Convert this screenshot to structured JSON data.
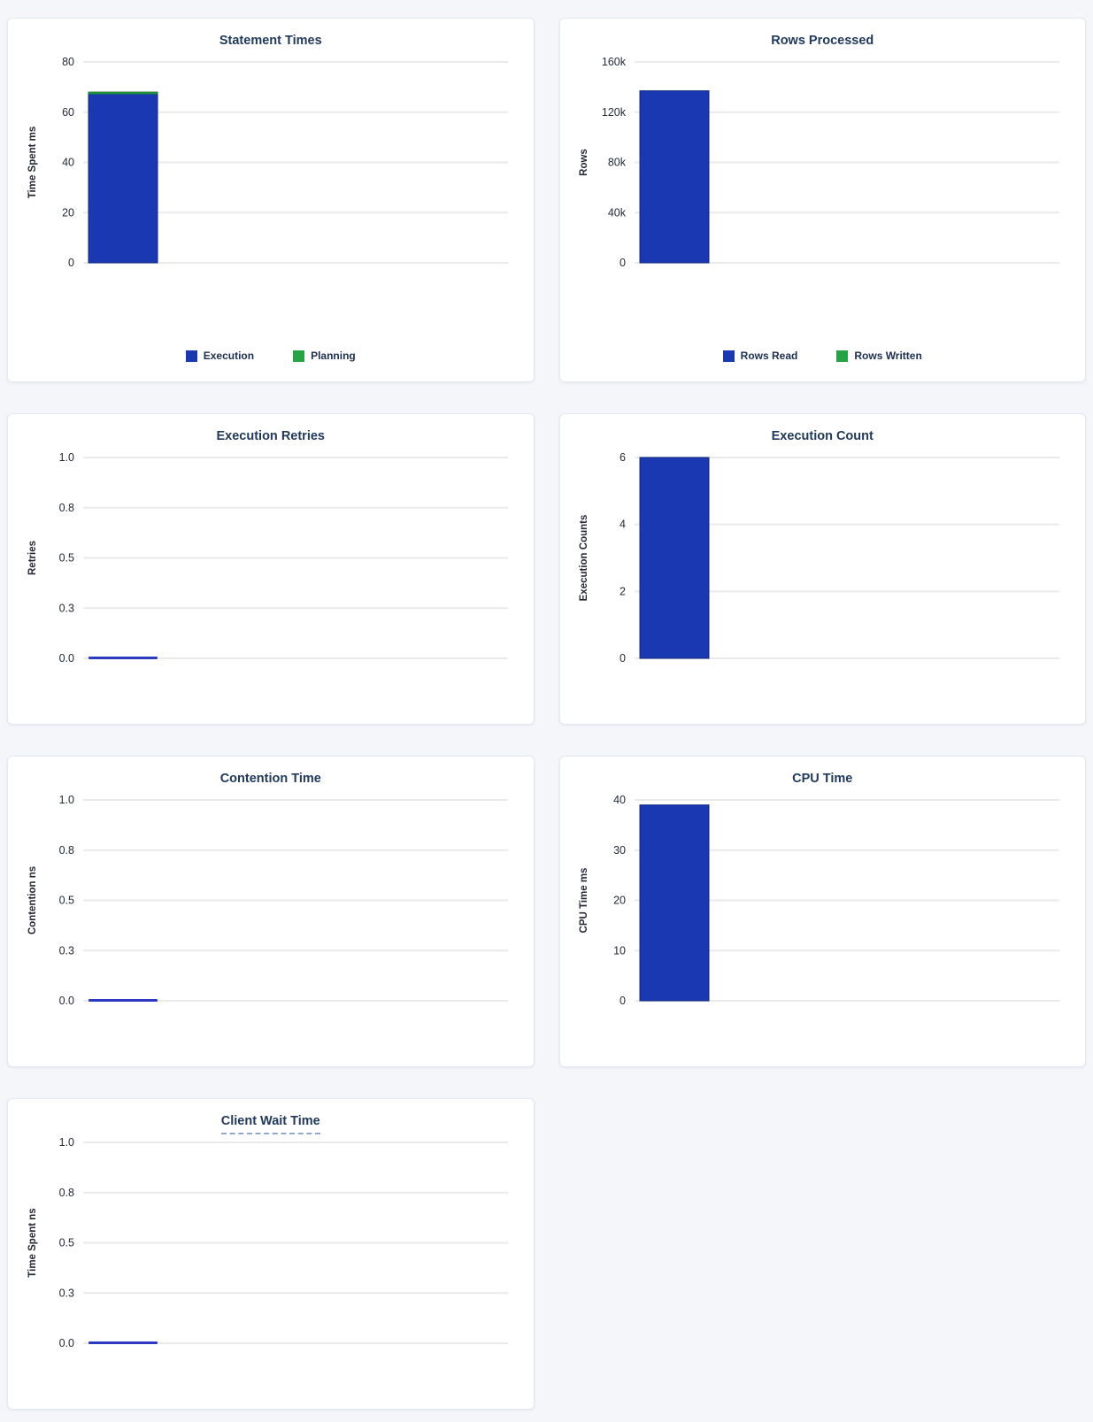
{
  "colors": {
    "blue": "#1a38b2",
    "blue_stroke": "#12297f",
    "green": "#26a344",
    "green_stroke": "#1b7c33",
    "zero_line": "#2a3bc0",
    "page_bg": "#f4f6fa",
    "card_bg": "#ffffff",
    "card_border": "#e3e9f0",
    "title_text": "#20395c",
    "axis_text": "#232b36",
    "gridline": "#e8eaec"
  },
  "chart_data": [
    {
      "id": "statement-times",
      "type": "bar",
      "title": "Statement Times",
      "ylabel": "Time Spent ms",
      "ytick_labels": [
        "80",
        "60",
        "40",
        "20",
        "0"
      ],
      "ylim": [
        0,
        80
      ],
      "ymax": 80,
      "stacked": true,
      "show_legend": true,
      "title_tooltip_underline": false,
      "series": [
        {
          "name": "Execution",
          "value": 67.3,
          "color": "blue"
        },
        {
          "name": "Planning",
          "value": 0.7,
          "color": "green"
        }
      ]
    },
    {
      "id": "rows-processed",
      "type": "bar",
      "title": "Rows Processed",
      "ylabel": "Rows",
      "ytick_labels": [
        "160k",
        "120k",
        "80k",
        "40k",
        "0"
      ],
      "ylim": [
        0,
        160000
      ],
      "ymax": 160000,
      "stacked": true,
      "show_legend": true,
      "title_tooltip_underline": false,
      "series": [
        {
          "name": "Rows Read",
          "value": 137000,
          "color": "blue"
        },
        {
          "name": "Rows Written",
          "value": 0,
          "color": "green"
        }
      ]
    },
    {
      "id": "execution-retries",
      "type": "bar",
      "title": "Execution Retries",
      "ylabel": "Retries",
      "ytick_labels": [
        "1.0",
        "0.8",
        "0.5",
        "0.3",
        "0.0"
      ],
      "ylim": [
        0,
        1
      ],
      "ymax": 1,
      "stacked": false,
      "show_legend": false,
      "title_tooltip_underline": false,
      "series": [
        {
          "name": "",
          "value": 0,
          "color": "blue"
        }
      ]
    },
    {
      "id": "execution-count",
      "type": "bar",
      "title": "Execution Count",
      "ylabel": "Execution Counts",
      "ytick_labels": [
        "6",
        "4",
        "2",
        "0"
      ],
      "ylim": [
        0,
        6
      ],
      "ymax": 6,
      "stacked": false,
      "show_legend": false,
      "title_tooltip_underline": false,
      "series": [
        {
          "name": "",
          "value": 6,
          "color": "blue"
        }
      ]
    },
    {
      "id": "contention-time",
      "type": "bar",
      "title": "Contention Time",
      "ylabel": "Contention ns",
      "ytick_labels": [
        "1.0",
        "0.8",
        "0.5",
        "0.3",
        "0.0"
      ],
      "ylim": [
        0,
        1
      ],
      "ymax": 1,
      "stacked": false,
      "show_legend": false,
      "title_tooltip_underline": false,
      "series": [
        {
          "name": "",
          "value": 0,
          "color": "blue"
        }
      ]
    },
    {
      "id": "cpu-time",
      "type": "bar",
      "title": "CPU Time",
      "ylabel": "CPU Time ms",
      "ytick_labels": [
        "40",
        "30",
        "20",
        "10",
        "0"
      ],
      "ylim": [
        0,
        40
      ],
      "ymax": 40,
      "stacked": false,
      "show_legend": false,
      "title_tooltip_underline": false,
      "series": [
        {
          "name": "",
          "value": 39,
          "color": "blue"
        }
      ]
    },
    {
      "id": "client-wait-time",
      "type": "bar",
      "title": "Client Wait Time",
      "ylabel": "Time Spent ns",
      "ytick_labels": [
        "1.0",
        "0.8",
        "0.5",
        "0.3",
        "0.0"
      ],
      "ylim": [
        0,
        1
      ],
      "ymax": 1,
      "stacked": false,
      "show_legend": false,
      "title_tooltip_underline": true,
      "series": [
        {
          "name": "",
          "value": 0,
          "color": "blue"
        }
      ]
    }
  ]
}
